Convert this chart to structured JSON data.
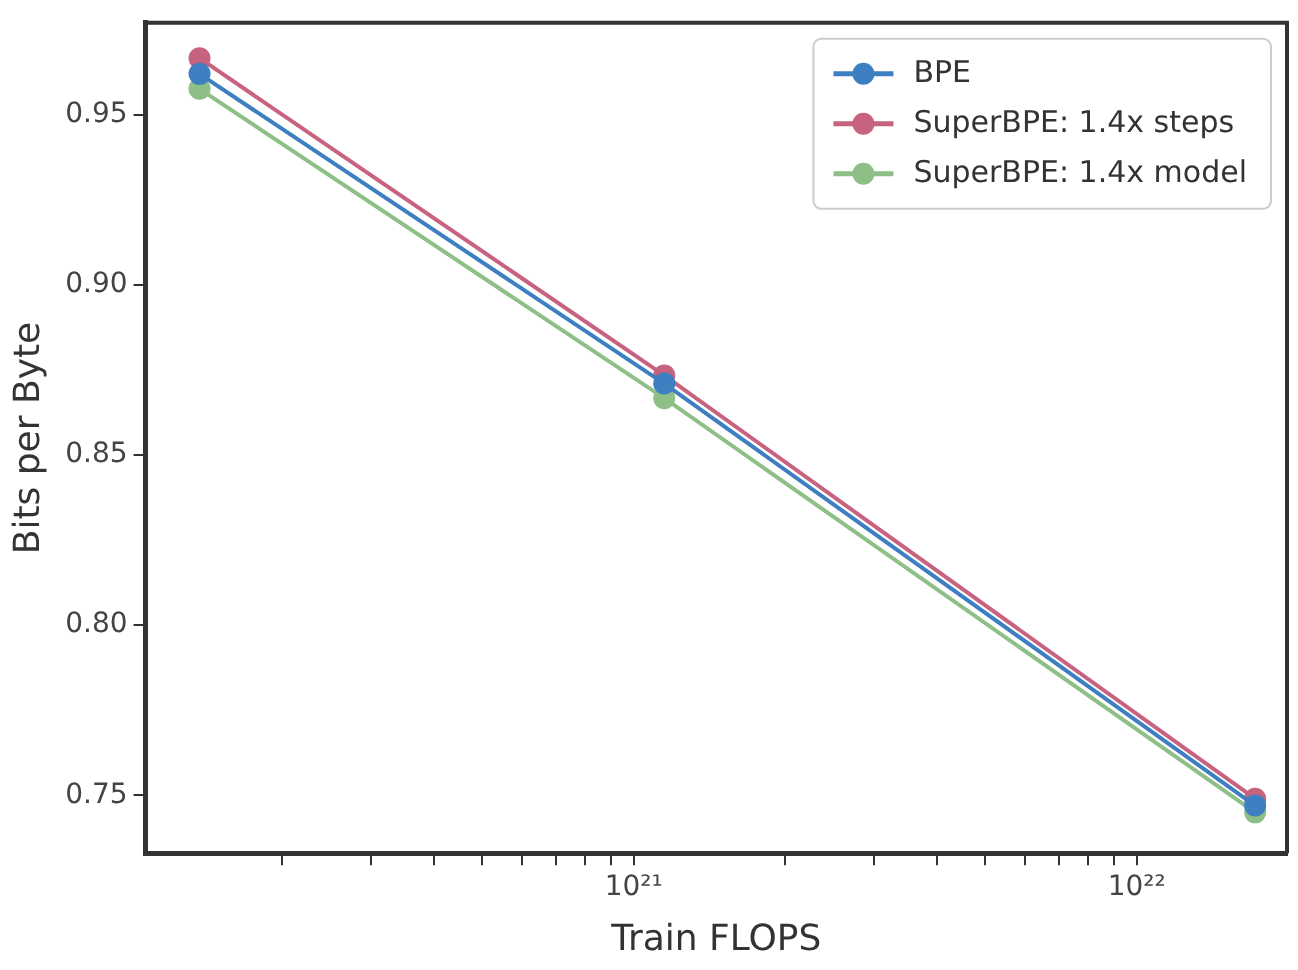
{
  "chart_data": {
    "type": "line",
    "xlabel": "Train FLOPS",
    "ylabel": "Bits per Byte",
    "log": "x",
    "x": [
      1.37e+20,
      1.15e+21,
      1.72e+22
    ],
    "series": [
      {
        "name": "BPE",
        "color": "#3d7fc1",
        "values": [
          0.962,
          0.871,
          0.747
        ]
      },
      {
        "name": "SuperBPE: 1.4x steps",
        "color": "#c7627f",
        "values": [
          0.9666,
          0.8734,
          0.749
        ]
      },
      {
        "name": "SuperBPE: 1.4x model",
        "color": "#8dbf86",
        "values": [
          0.9576,
          0.8667,
          0.745
        ]
      }
    ],
    "xlim": [
      1.07e+20,
      1.99e+22
    ],
    "ylim": [
      0.733,
      0.977
    ],
    "xticks": [
      {
        "value": 2e+20,
        "label": null
      },
      {
        "value": 3e+20,
        "label": null
      },
      {
        "value": 4e+20,
        "label": null
      },
      {
        "value": 5e+20,
        "label": null
      },
      {
        "value": 6e+20,
        "label": null
      },
      {
        "value": 7e+20,
        "label": null
      },
      {
        "value": 8e+20,
        "label": null
      },
      {
        "value": 9e+20,
        "label": null
      },
      {
        "value": 1e+21,
        "label": "10²¹"
      },
      {
        "value": 2e+21,
        "label": null
      },
      {
        "value": 3e+21,
        "label": null
      },
      {
        "value": 4e+21,
        "label": null
      },
      {
        "value": 5e+21,
        "label": null
      },
      {
        "value": 6e+21,
        "label": null
      },
      {
        "value": 7e+21,
        "label": null
      },
      {
        "value": 8e+21,
        "label": null
      },
      {
        "value": 9e+21,
        "label": null
      },
      {
        "value": 1e+22,
        "label": "10²²"
      }
    ],
    "yticks": [
      0.75,
      {
        "value": 0.8,
        "label": "0.80"
      },
      0.85,
      {
        "value": 0.9,
        "label": "0.90"
      },
      0.95
    ],
    "legend": "top right",
    "marker": "circle",
    "line_style": "solid",
    "grid": false
  }
}
